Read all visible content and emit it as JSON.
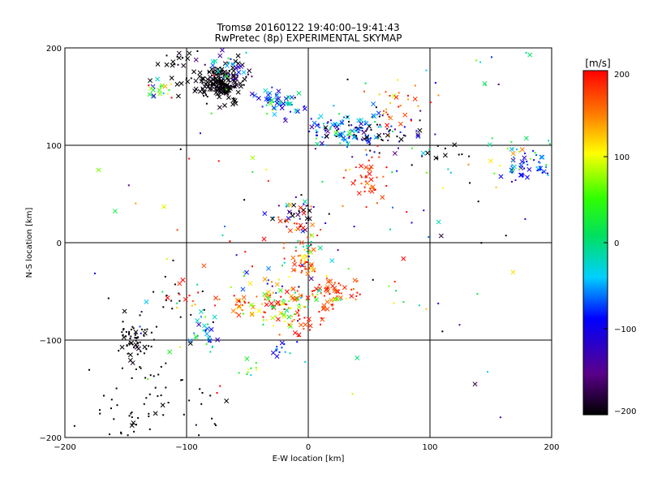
{
  "chart_data": {
    "type": "scatter",
    "title": "Tromsø 20160122 19:40:00–19:41:43",
    "subtitle": "RwPretec (8p) EXPERIMENTAL SKYMAP",
    "xlabel": "E-W location [km]",
    "ylabel": "N-S location [km]",
    "xlim": [
      -200,
      200
    ],
    "ylim": [
      -200,
      200
    ],
    "xticks": [
      "−200",
      "−100",
      "0",
      "100",
      "200"
    ],
    "yticks": [
      "−200",
      "−100",
      "0",
      "100",
      "200"
    ],
    "grid": true,
    "colorbar": {
      "unit": "[m/s]",
      "range": [
        -200,
        200
      ],
      "ticks": [
        "−200",
        "−100",
        "0",
        "100",
        "200"
      ],
      "colormap": "black-purple-blue-cyan-green-yellow-red"
    },
    "markers": [
      "x",
      "dot"
    ],
    "clusters": [
      {
        "x": -72,
        "y": 162,
        "sx": 10,
        "sy": 9,
        "n": 170,
        "v": -200,
        "vs": 10,
        "xfrac": 0.65
      },
      {
        "x": -65,
        "y": 178,
        "sx": 12,
        "sy": 10,
        "n": 40,
        "v": -120,
        "vs": 80,
        "xfrac": 0.5
      },
      {
        "x": -108,
        "y": 180,
        "sx": 12,
        "sy": 10,
        "n": 25,
        "v": -200,
        "vs": 10,
        "xfrac": 0.8
      },
      {
        "x": -125,
        "y": 155,
        "sx": 8,
        "sy": 8,
        "n": 18,
        "v": 40,
        "vs": 80,
        "xfrac": 0.5
      },
      {
        "x": -25,
        "y": 145,
        "sx": 9,
        "sy": 6,
        "n": 50,
        "v": -60,
        "vs": 40,
        "xfrac": 0.5
      },
      {
        "x": 25,
        "y": 115,
        "sx": 18,
        "sy": 8,
        "n": 100,
        "v": -80,
        "vs": 60,
        "xfrac": 0.3
      },
      {
        "x": 60,
        "y": 115,
        "sx": 20,
        "sy": 12,
        "n": 70,
        "v": -140,
        "vs": 90,
        "xfrac": 0.3
      },
      {
        "x": 70,
        "y": 140,
        "sx": 14,
        "sy": 12,
        "n": 30,
        "v": 170,
        "vs": 30,
        "xfrac": 0.2
      },
      {
        "x": 52,
        "y": 65,
        "sx": 10,
        "sy": 12,
        "n": 40,
        "v": 180,
        "vs": 20,
        "xfrac": 0.3
      },
      {
        "x": 180,
        "y": 78,
        "sx": 10,
        "sy": 8,
        "n": 45,
        "v": -90,
        "vs": 30,
        "xfrac": 0.4
      },
      {
        "x": 170,
        "y": 88,
        "sx": 18,
        "sy": 10,
        "n": 25,
        "v": 60,
        "vs": 60,
        "xfrac": 0.4
      },
      {
        "x": 115,
        "y": 92,
        "sx": 12,
        "sy": 5,
        "n": 12,
        "v": -200,
        "vs": 10,
        "xfrac": 0.5
      },
      {
        "x": 150,
        "y": 180,
        "sx": 15,
        "sy": 12,
        "n": 10,
        "v": -20,
        "vs": 60,
        "xfrac": 0.3
      },
      {
        "x": -10,
        "y": 33,
        "sx": 10,
        "sy": 8,
        "n": 35,
        "v": -150,
        "vs": 80,
        "xfrac": 0.4
      },
      {
        "x": -10,
        "y": 20,
        "sx": 12,
        "sy": 10,
        "n": 20,
        "v": 170,
        "vs": 30,
        "xfrac": 0.4
      },
      {
        "x": 0,
        "y": -5,
        "sx": 6,
        "sy": 10,
        "n": 20,
        "v": 30,
        "vs": 60,
        "xfrac": 0.3
      },
      {
        "x": -5,
        "y": -22,
        "sx": 6,
        "sy": 6,
        "n": 30,
        "v": 180,
        "vs": 20,
        "xfrac": 0.3
      },
      {
        "x": 20,
        "y": -50,
        "sx": 12,
        "sy": 7,
        "n": 45,
        "v": 180,
        "vs": 20,
        "xfrac": 0.5
      },
      {
        "x": -12,
        "y": -62,
        "sx": 18,
        "sy": 8,
        "n": 80,
        "v": 100,
        "vs": 100,
        "xfrac": 0.4
      },
      {
        "x": -50,
        "y": -60,
        "sx": 15,
        "sy": 8,
        "n": 25,
        "v": 170,
        "vs": 30,
        "xfrac": 0.5
      },
      {
        "x": -30,
        "y": -75,
        "sx": 15,
        "sy": 8,
        "n": 25,
        "v": 100,
        "vs": 50,
        "xfrac": 0.4
      },
      {
        "x": -5,
        "y": -85,
        "sx": 8,
        "sy": 10,
        "n": 20,
        "v": 185,
        "vs": 15,
        "xfrac": 0.3
      },
      {
        "x": -30,
        "y": -40,
        "sx": 15,
        "sy": 10,
        "n": 20,
        "v": 0,
        "vs": 100,
        "xfrac": 0.4
      },
      {
        "x": -142,
        "y": -100,
        "sx": 7,
        "sy": 10,
        "n": 60,
        "v": -200,
        "vs": 10,
        "xfrac": 0.2
      },
      {
        "x": -85,
        "y": -97,
        "sx": 5,
        "sy": 12,
        "n": 30,
        "v": -60,
        "vs": 70,
        "xfrac": 0.3
      },
      {
        "x": -115,
        "y": -155,
        "sx": 25,
        "sy": 25,
        "n": 45,
        "v": -200,
        "vs": 10,
        "xfrac": 0.1
      },
      {
        "x": -150,
        "y": -180,
        "sx": 15,
        "sy": 12,
        "n": 20,
        "v": -200,
        "vs": 10,
        "xfrac": 0.2
      },
      {
        "x": -110,
        "y": -50,
        "sx": 15,
        "sy": 20,
        "n": 15,
        "v": -200,
        "vs": 10,
        "xfrac": 0.2
      },
      {
        "x": -100,
        "y": -45,
        "sx": 10,
        "sy": 10,
        "n": 10,
        "v": 170,
        "vs": 30,
        "xfrac": 0.5
      },
      {
        "x": -50,
        "y": -127,
        "sx": 5,
        "sy": 5,
        "n": 10,
        "v": 40,
        "vs": 30,
        "xfrac": 0.3
      },
      {
        "x": -25,
        "y": -110,
        "sx": 5,
        "sy": 5,
        "n": 12,
        "v": -70,
        "vs": 20,
        "xfrac": 0.3
      },
      {
        "x": 0,
        "y": 0,
        "sx": 100,
        "sy": 100,
        "n": 130,
        "v": 0,
        "vs": 150,
        "xfrac": 0.2
      }
    ]
  }
}
